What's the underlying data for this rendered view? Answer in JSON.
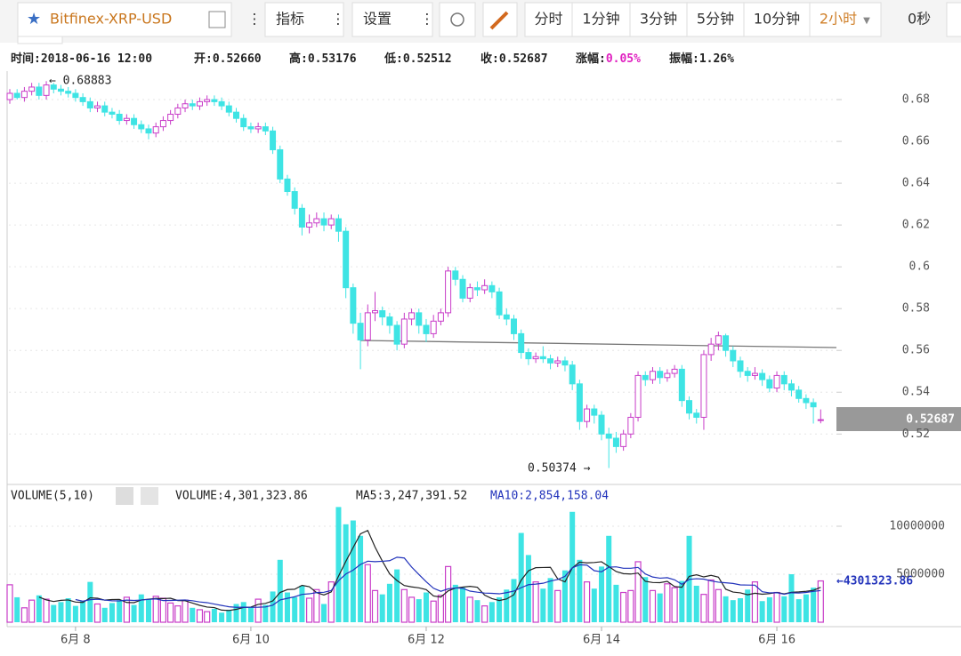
{
  "toolbar": {
    "symbol": "Bitfinex-XRP-USD",
    "indicator": "指标",
    "settings": "设置",
    "periods": [
      "分时",
      "1分钟",
      "3分钟",
      "5分钟",
      "10分钟",
      "2小时"
    ],
    "active_period": "2小时",
    "countdown": "0秒"
  },
  "info": [
    {
      "label": "时间:",
      "value": "2018-06-16 12:00"
    },
    {
      "label": "开:",
      "value": "0.52660"
    },
    {
      "label": "高:",
      "value": "0.53176"
    },
    {
      "label": "低:",
      "value": "0.52512"
    },
    {
      "label": "收:",
      "value": "0.52687"
    },
    {
      "label": "涨幅:",
      "value": "0.05%",
      "color": "#e020c0"
    },
    {
      "label": "振幅:",
      "value": "1.26%"
    }
  ],
  "volume_info": {
    "indicator": "VOLUME(5,10)",
    "volume": "VOLUME:4,301,323.86",
    "ma5": "MA5:3,247,391.52",
    "ma10": "MA10:2,854,158.04"
  },
  "annotations": {
    "high": "← 0.68883",
    "low": "0.50374 →",
    "last_price": "0.52687",
    "last_volume": "←4301323.86"
  },
  "chart_data": {
    "type": "candlestick",
    "categories": [
      null,
      null,
      null,
      null,
      null,
      null,
      null,
      null,
      null,
      "6月 8",
      null,
      null,
      null,
      null,
      null,
      null,
      null,
      null,
      null,
      null,
      null,
      null,
      null,
      null,
      null,
      null,
      null,
      null,
      null,
      null,
      null,
      null,
      null,
      "6月 10",
      null,
      null,
      null,
      null,
      null,
      null,
      null,
      null,
      null,
      null,
      null,
      null,
      null,
      null,
      null,
      null,
      null,
      null,
      null,
      null,
      null,
      null,
      null,
      "6月 12",
      null,
      null,
      null,
      null,
      null,
      null,
      null,
      null,
      null,
      null,
      null,
      null,
      null,
      null,
      null,
      null,
      null,
      null,
      null,
      null,
      null,
      null,
      null,
      "6月 14",
      null,
      null,
      null,
      null,
      null,
      null,
      null,
      null,
      null,
      null,
      null,
      null,
      null,
      null,
      null,
      null,
      null,
      null,
      null,
      null,
      null,
      null,
      null,
      "6月 16",
      null,
      null,
      null,
      null,
      null,
      null
    ],
    "open": [
      0.68,
      0.683,
      0.681,
      0.684,
      0.686,
      0.682,
      0.687,
      0.685,
      0.684,
      0.683,
      0.681,
      0.679,
      0.676,
      0.677,
      0.674,
      0.673,
      0.67,
      0.671,
      0.668,
      0.666,
      0.664,
      0.667,
      0.67,
      0.673,
      0.676,
      0.678,
      0.677,
      0.679,
      0.68,
      0.679,
      0.677,
      0.674,
      0.671,
      0.667,
      0.666,
      0.667,
      0.665,
      0.656,
      0.642,
      0.636,
      0.628,
      0.619,
      0.621,
      0.623,
      0.62,
      0.623,
      0.617,
      0.59,
      0.573,
      0.565,
      0.578,
      0.579,
      0.576,
      0.572,
      0.563,
      0.575,
      0.578,
      0.572,
      0.568,
      0.574,
      0.578,
      0.598,
      0.594,
      0.585,
      0.59,
      0.589,
      0.591,
      0.588,
      0.577,
      0.575,
      0.568,
      0.559,
      0.556,
      0.557,
      0.556,
      0.554,
      0.555,
      0.553,
      0.544,
      0.526,
      0.532,
      0.529,
      0.52,
      0.518,
      0.514,
      0.52,
      0.528,
      0.548,
      0.546,
      0.55,
      0.547,
      0.549,
      0.551,
      0.536,
      0.53,
      0.528,
      0.558,
      0.563,
      0.567,
      0.56,
      0.555,
      0.55,
      0.548,
      0.549,
      0.546,
      0.542,
      0.548,
      0.544,
      0.541,
      0.537,
      0.535,
      0.5266
    ],
    "high": [
      0.685,
      0.685,
      0.686,
      0.688,
      0.688,
      0.68883,
      0.688,
      0.687,
      0.686,
      0.685,
      0.683,
      0.681,
      0.679,
      0.679,
      0.676,
      0.675,
      0.673,
      0.673,
      0.67,
      0.668,
      0.669,
      0.672,
      0.675,
      0.678,
      0.68,
      0.68,
      0.681,
      0.682,
      0.682,
      0.681,
      0.679,
      0.676,
      0.673,
      0.669,
      0.669,
      0.669,
      0.667,
      0.658,
      0.644,
      0.638,
      0.63,
      0.625,
      0.626,
      0.626,
      0.625,
      0.625,
      0.619,
      0.592,
      0.578,
      0.582,
      0.588,
      0.581,
      0.578,
      0.574,
      0.578,
      0.58,
      0.58,
      0.575,
      0.577,
      0.58,
      0.6,
      0.6,
      0.596,
      0.592,
      0.593,
      0.594,
      0.593,
      0.59,
      0.58,
      0.577,
      0.57,
      0.561,
      0.559,
      0.562,
      0.558,
      0.557,
      0.557,
      0.555,
      0.546,
      0.534,
      0.534,
      0.531,
      0.523,
      0.521,
      0.522,
      0.53,
      0.55,
      0.55,
      0.552,
      0.552,
      0.551,
      0.553,
      0.553,
      0.538,
      0.532,
      0.56,
      0.566,
      0.569,
      0.568,
      0.562,
      0.557,
      0.552,
      0.552,
      0.551,
      0.548,
      0.55,
      0.55,
      0.546,
      0.543,
      0.539,
      0.537,
      0.53176
    ],
    "low": [
      0.678,
      0.68,
      0.679,
      0.682,
      0.68,
      0.68,
      0.683,
      0.682,
      0.681,
      0.679,
      0.677,
      0.674,
      0.674,
      0.672,
      0.671,
      0.668,
      0.668,
      0.666,
      0.664,
      0.661,
      0.662,
      0.665,
      0.668,
      0.671,
      0.674,
      0.675,
      0.675,
      0.677,
      0.677,
      0.675,
      0.672,
      0.669,
      0.665,
      0.664,
      0.664,
      0.663,
      0.654,
      0.64,
      0.634,
      0.625,
      0.615,
      0.616,
      0.619,
      0.617,
      0.618,
      0.612,
      0.585,
      0.568,
      0.551,
      0.562,
      0.574,
      0.572,
      0.568,
      0.56,
      0.561,
      0.572,
      0.568,
      0.564,
      0.566,
      0.572,
      0.576,
      0.591,
      0.583,
      0.583,
      0.586,
      0.587,
      0.585,
      0.575,
      0.572,
      0.565,
      0.556,
      0.553,
      0.554,
      0.554,
      0.551,
      0.552,
      0.55,
      0.541,
      0.522,
      0.523,
      0.525,
      0.517,
      0.50374,
      0.511,
      0.512,
      0.518,
      0.526,
      0.543,
      0.544,
      0.544,
      0.545,
      0.547,
      0.533,
      0.527,
      0.525,
      0.522,
      0.555,
      0.56,
      0.557,
      0.552,
      0.547,
      0.545,
      0.546,
      0.543,
      0.54,
      0.54,
      0.541,
      0.538,
      0.535,
      0.532,
      0.525,
      0.52512
    ],
    "close": [
      0.683,
      0.681,
      0.684,
      0.686,
      0.682,
      0.687,
      0.685,
      0.684,
      0.683,
      0.681,
      0.679,
      0.676,
      0.677,
      0.674,
      0.673,
      0.67,
      0.671,
      0.668,
      0.666,
      0.664,
      0.667,
      0.67,
      0.673,
      0.676,
      0.678,
      0.677,
      0.679,
      0.68,
      0.679,
      0.677,
      0.674,
      0.671,
      0.667,
      0.666,
      0.667,
      0.665,
      0.656,
      0.642,
      0.636,
      0.628,
      0.619,
      0.621,
      0.623,
      0.62,
      0.623,
      0.617,
      0.59,
      0.573,
      0.565,
      0.578,
      0.579,
      0.576,
      0.572,
      0.563,
      0.575,
      0.578,
      0.572,
      0.568,
      0.574,
      0.578,
      0.598,
      0.594,
      0.585,
      0.59,
      0.589,
      0.591,
      0.588,
      0.577,
      0.575,
      0.568,
      0.559,
      0.556,
      0.557,
      0.556,
      0.554,
      0.555,
      0.553,
      0.544,
      0.526,
      0.532,
      0.529,
      0.52,
      0.518,
      0.514,
      0.52,
      0.528,
      0.548,
      0.546,
      0.55,
      0.547,
      0.549,
      0.551,
      0.536,
      0.53,
      0.528,
      0.558,
      0.563,
      0.567,
      0.56,
      0.555,
      0.55,
      0.548,
      0.549,
      0.546,
      0.542,
      0.548,
      0.544,
      0.541,
      0.537,
      0.535,
      0.533,
      0.52687
    ],
    "volume": [
      3900000,
      2600000,
      1500000,
      2300000,
      2800000,
      2400000,
      1800000,
      2100000,
      2500000,
      1700000,
      2200000,
      4200000,
      1900000,
      1500000,
      2000000,
      2300000,
      2600000,
      1800000,
      2900000,
      2400000,
      2700000,
      2500000,
      2000000,
      1700000,
      2300000,
      1500000,
      1300000,
      1100000,
      1400000,
      1000000,
      1300000,
      1900000,
      2100000,
      1600000,
      2400000,
      1800000,
      3200000,
      6500000,
      3100000,
      2600000,
      3800000,
      2500000,
      3400000,
      1900000,
      4200000,
      12000000,
      10200000,
      10600000,
      9000000,
      6000000,
      3300000,
      2900000,
      4000000,
      5500000,
      3400000,
      2600000,
      2400000,
      3100000,
      2200000,
      2800000,
      5800000,
      3900000,
      3600000,
      2600000,
      2300000,
      1700000,
      2100000,
      2600000,
      3400000,
      4500000,
      9300000,
      7000000,
      4200000,
      3500000,
      4600000,
      3300000,
      5400000,
      11500000,
      6500000,
      4200000,
      3500000,
      5800000,
      9000000,
      3900000,
      3100000,
      3300000,
      6300000,
      4700000,
      3300000,
      3000000,
      4000000,
      3600000,
      4300000,
      9000000,
      3800000,
      2900000,
      4400000,
      3400000,
      2700000,
      2300000,
      2500000,
      3400000,
      4200000,
      2200000,
      2600000,
      3100000,
      2700000,
      5000000,
      2400000,
      2900000,
      3600000,
      4301323.86
    ],
    "colors": {
      "up": "#c83cc8",
      "down": "#3ee4e4"
    },
    "ylim": [
      0.498,
      0.6915
    ],
    "yticks": [
      0.52,
      0.54,
      0.56,
      0.58,
      0.6,
      0.62,
      0.64,
      0.66,
      0.68
    ],
    "volume_ylim": [
      0,
      12500000
    ],
    "volume_yticks": [
      5000000,
      10000000
    ],
    "moving_averages": [
      {
        "period": 5,
        "color": "#222222"
      },
      {
        "period": 10,
        "color": "#2233bb"
      }
    ],
    "grid": true
  }
}
